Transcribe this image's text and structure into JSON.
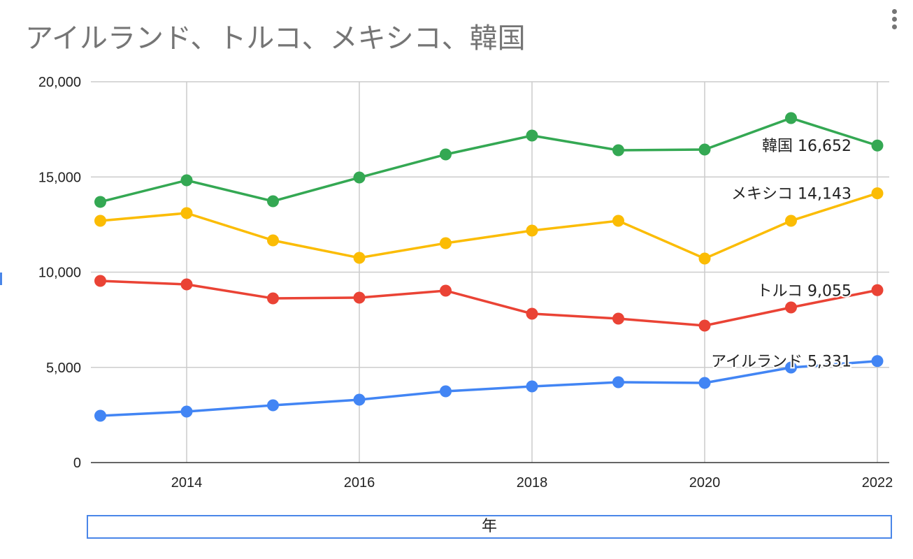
{
  "chart_data": {
    "type": "line",
    "title": "アイルランド、トルコ、メキシコ、韓国",
    "xlabel": "年",
    "ylabel": "",
    "x": [
      2013,
      2014,
      2015,
      2016,
      2017,
      2018,
      2019,
      2020,
      2021,
      2022
    ],
    "xticks": [
      "2014",
      "2016",
      "2018",
      "2020",
      "2022"
    ],
    "yticks": [
      "0",
      "5,000",
      "10,000",
      "15,000",
      "20,000"
    ],
    "ylim": [
      0,
      20000
    ],
    "grid": true,
    "legend": "none (end labels)",
    "series": [
      {
        "name": "韓国",
        "color": "#34a853",
        "end_label": "韓国 16,652",
        "values": [
          13690,
          14826,
          13725,
          14972,
          16183,
          17174,
          16404,
          16440,
          18092,
          16652
        ]
      },
      {
        "name": "メキシコ",
        "color": "#fbbc04",
        "end_label": "メキシコ 14,143",
        "values": [
          12697,
          13101,
          11670,
          10752,
          11523,
          12183,
          12697,
          10716,
          12697,
          14143
        ]
      },
      {
        "name": "トルコ",
        "color": "#ea4335",
        "end_label": "トルコ 9,055",
        "values": [
          9541,
          9358,
          8624,
          8661,
          9028,
          7817,
          7560,
          7193,
          8147,
          9055
        ]
      },
      {
        "name": "アイルランド",
        "color": "#4285f4",
        "end_label": "アイルランド 5,331",
        "values": [
          2459,
          2679,
          3009,
          3303,
          3743,
          4000,
          4220,
          4183,
          4991,
          5331
        ]
      }
    ]
  }
}
